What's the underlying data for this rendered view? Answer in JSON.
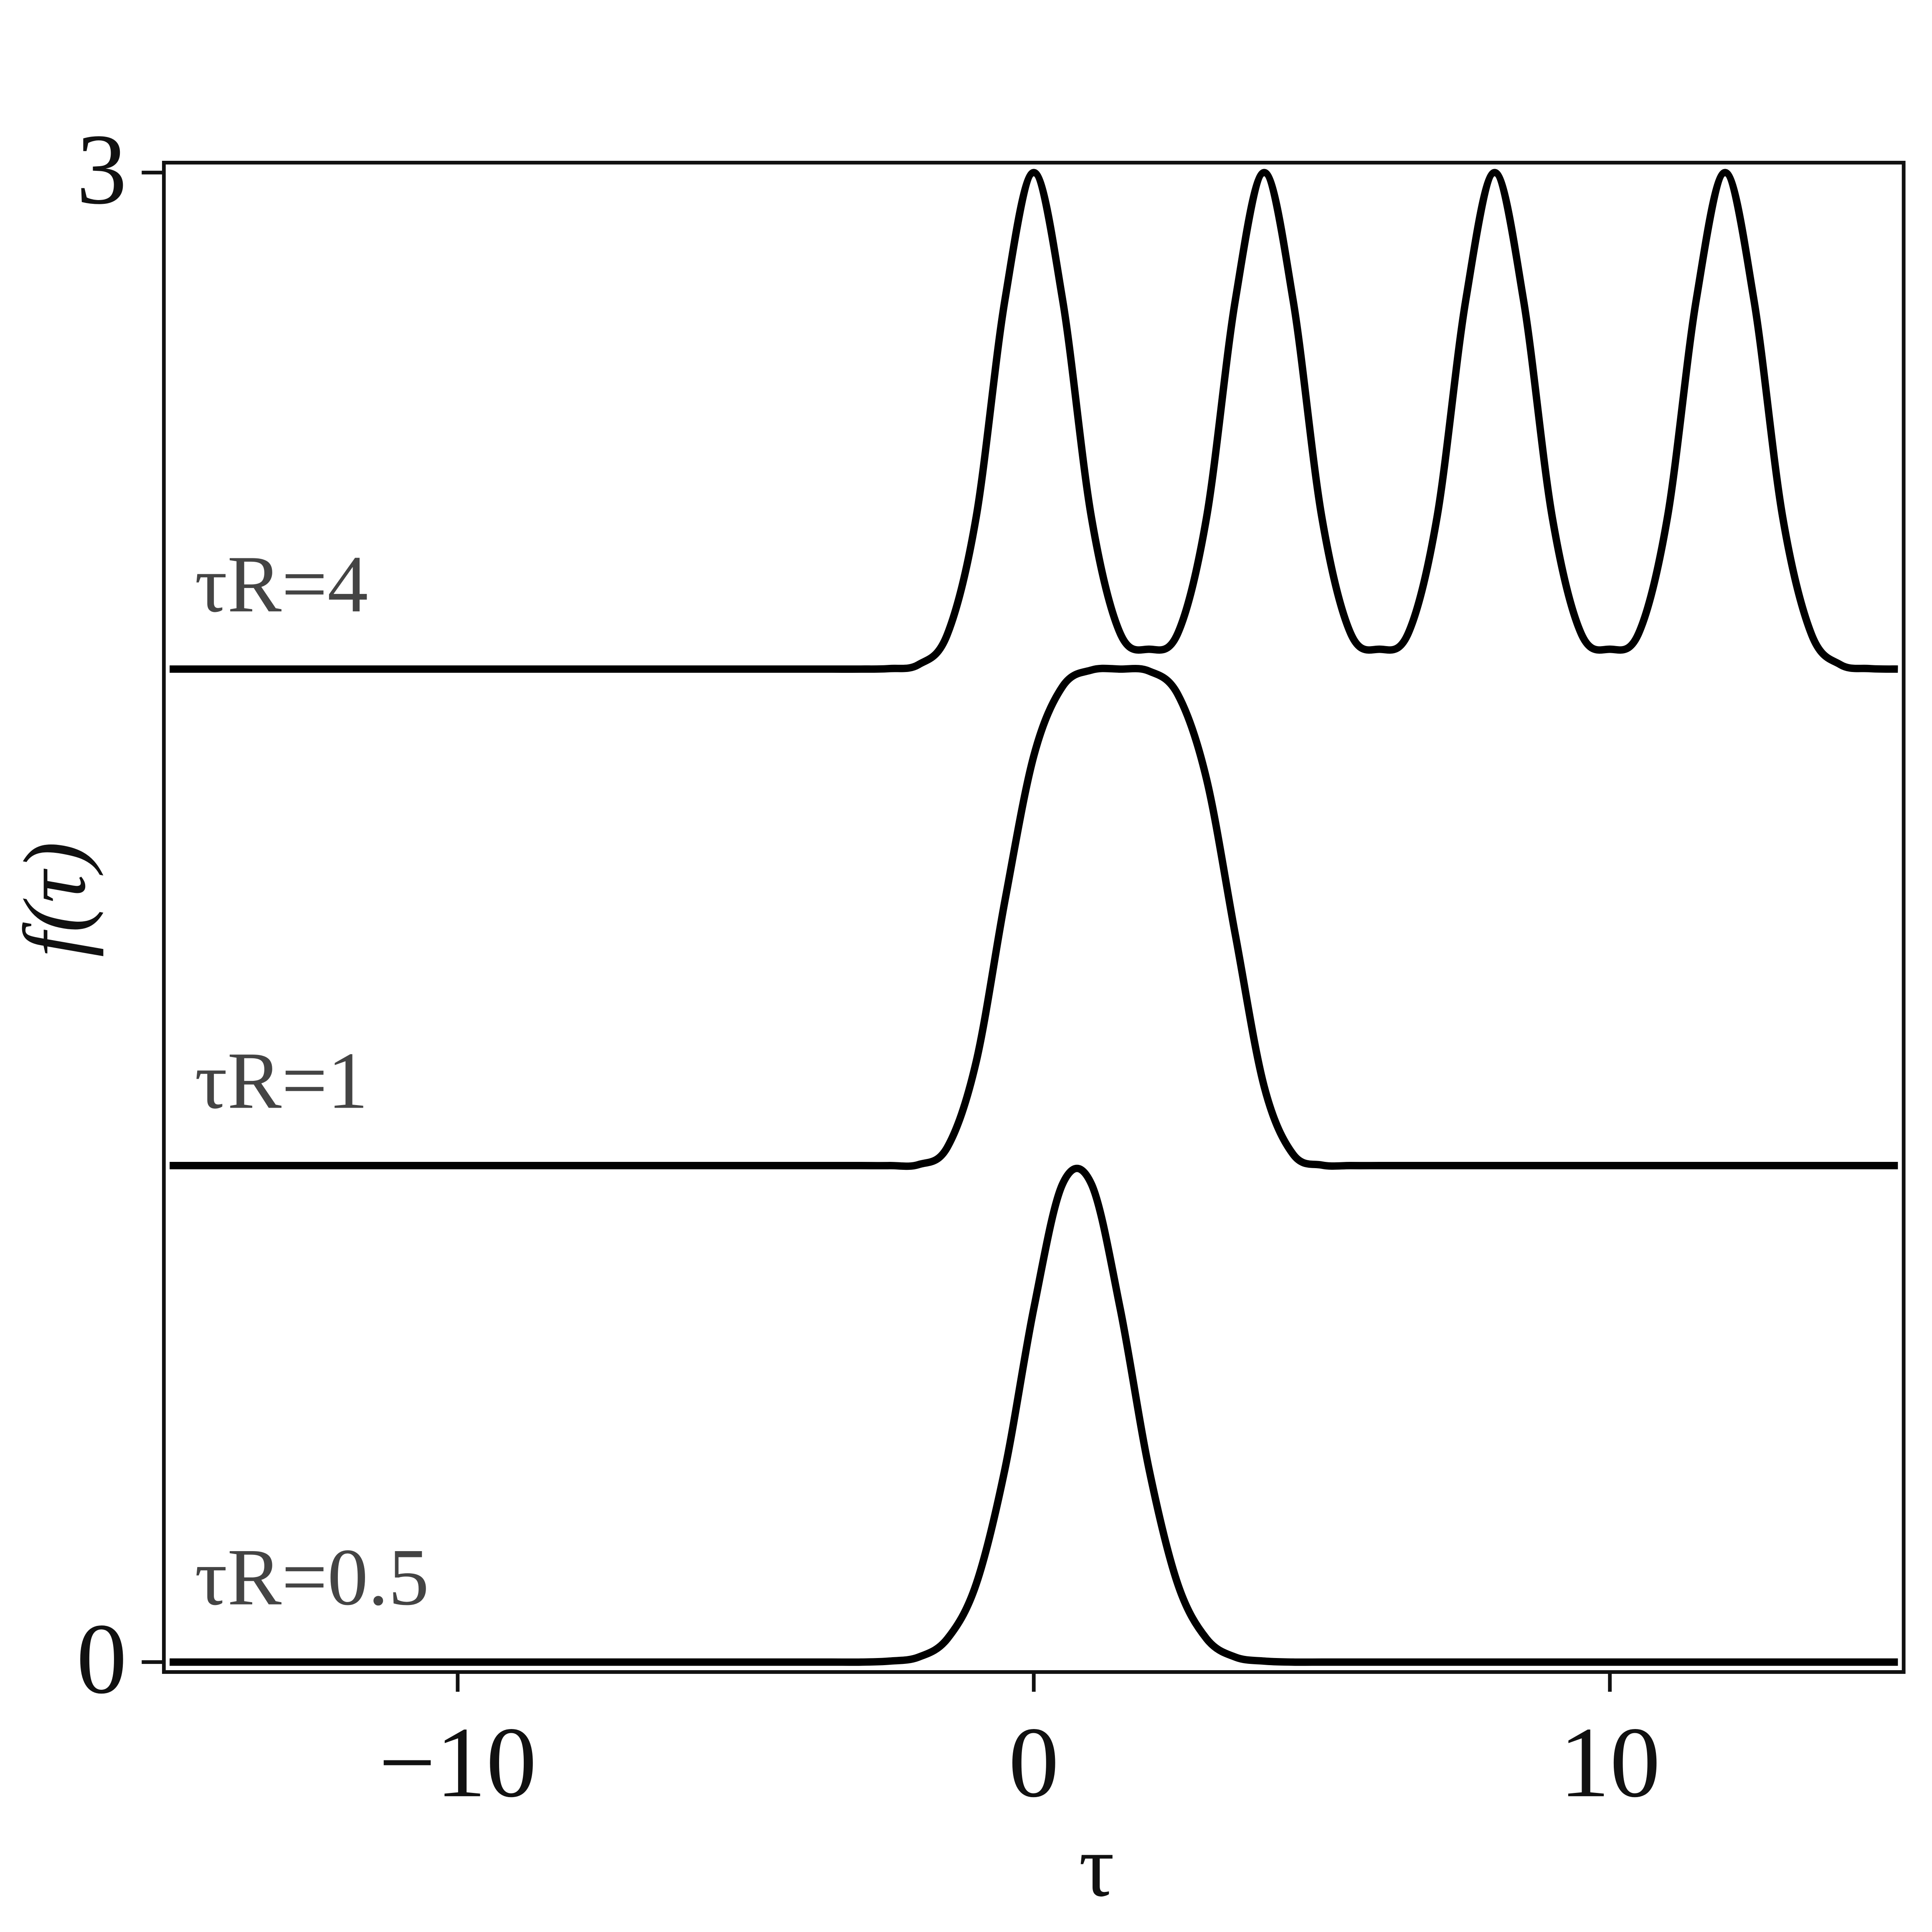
{
  "chart_data": {
    "type": "line",
    "x_label": "τ",
    "y_label": "f(τ)",
    "xlim": [
      -15.1,
      15.1
    ],
    "ylim": [
      -0.02,
      3.02
    ],
    "xticks": [
      {
        "value": -10,
        "label": "−10"
      },
      0,
      10
    ],
    "yticks": [
      0,
      3
    ],
    "grid": false,
    "color": "#000000",
    "x": [
      -15,
      -14.5,
      -14,
      -13.5,
      -13,
      -12.5,
      -12,
      -11.5,
      -11,
      -10.5,
      -10,
      -9.5,
      -9,
      -8.5,
      -8,
      -7.5,
      -7,
      -6.5,
      -6,
      -5.5,
      -5,
      -4.5,
      -4,
      -3.5,
      -3,
      -2.5,
      -2,
      -1.5,
      -1,
      -0.5,
      0,
      0.5,
      1,
      1.5,
      2,
      2.5,
      3,
      3.5,
      4,
      4.5,
      5,
      5.5,
      6,
      6.5,
      7,
      7.5,
      8,
      8.5,
      9,
      9.5,
      10,
      10.5,
      11,
      11.5,
      12,
      12.5,
      13,
      13.5,
      14,
      14.5,
      15
    ],
    "series": [
      {
        "name": "τR=0.5",
        "color": "#000000",
        "values": [
          0,
          0,
          0,
          0,
          0,
          0,
          0,
          0,
          0,
          0,
          0,
          0,
          0,
          0,
          0,
          0,
          0,
          0,
          0,
          0,
          0,
          0,
          0,
          0,
          0,
          0.002,
          0.01,
          0.047,
          0.157,
          0.389,
          0.712,
          0.963,
          0.963,
          0.712,
          0.389,
          0.157,
          0.047,
          0.01,
          0.002,
          0,
          0,
          0,
          0,
          0,
          0,
          0,
          0,
          0,
          0,
          0,
          0,
          0,
          0,
          0,
          0,
          0,
          0,
          0,
          0,
          0,
          0
        ]
      },
      {
        "name": "τR=1",
        "color": "#000000",
        "values": [
          1,
          1,
          1,
          1,
          1,
          1,
          1,
          1,
          1,
          1,
          1,
          1,
          1,
          1,
          1,
          1,
          1,
          1,
          1,
          1,
          1,
          1,
          1,
          1,
          1,
          1,
          1.002,
          1.037,
          1.209,
          1.534,
          1.825,
          1.965,
          1.998,
          2,
          1.996,
          1.949,
          1.778,
          1.464,
          1.159,
          1.023,
          1.001,
          1,
          1,
          1,
          1,
          1,
          1,
          1,
          1,
          1,
          1,
          1,
          1,
          1,
          1,
          1,
          1,
          1,
          1,
          1,
          1
        ]
      },
      {
        "name": "τR=4",
        "color": "#000000",
        "values": [
          2,
          2,
          2,
          2,
          2,
          2,
          2,
          2,
          2,
          2,
          2,
          2,
          2,
          2,
          2,
          2,
          2,
          2,
          2,
          2,
          2,
          2,
          2,
          2,
          2,
          2.001,
          2.009,
          2.07,
          2.306,
          2.744,
          3,
          2.744,
          2.306,
          2.072,
          2.04,
          2.072,
          2.306,
          2.744,
          3,
          2.744,
          2.306,
          2.072,
          2.04,
          2.072,
          2.306,
          2.744,
          3,
          2.744,
          2.306,
          2.072,
          2.04,
          2.072,
          2.306,
          2.744,
          3,
          2.744,
          2.306,
          2.07,
          2.009,
          2.001,
          2
        ]
      }
    ]
  }
}
